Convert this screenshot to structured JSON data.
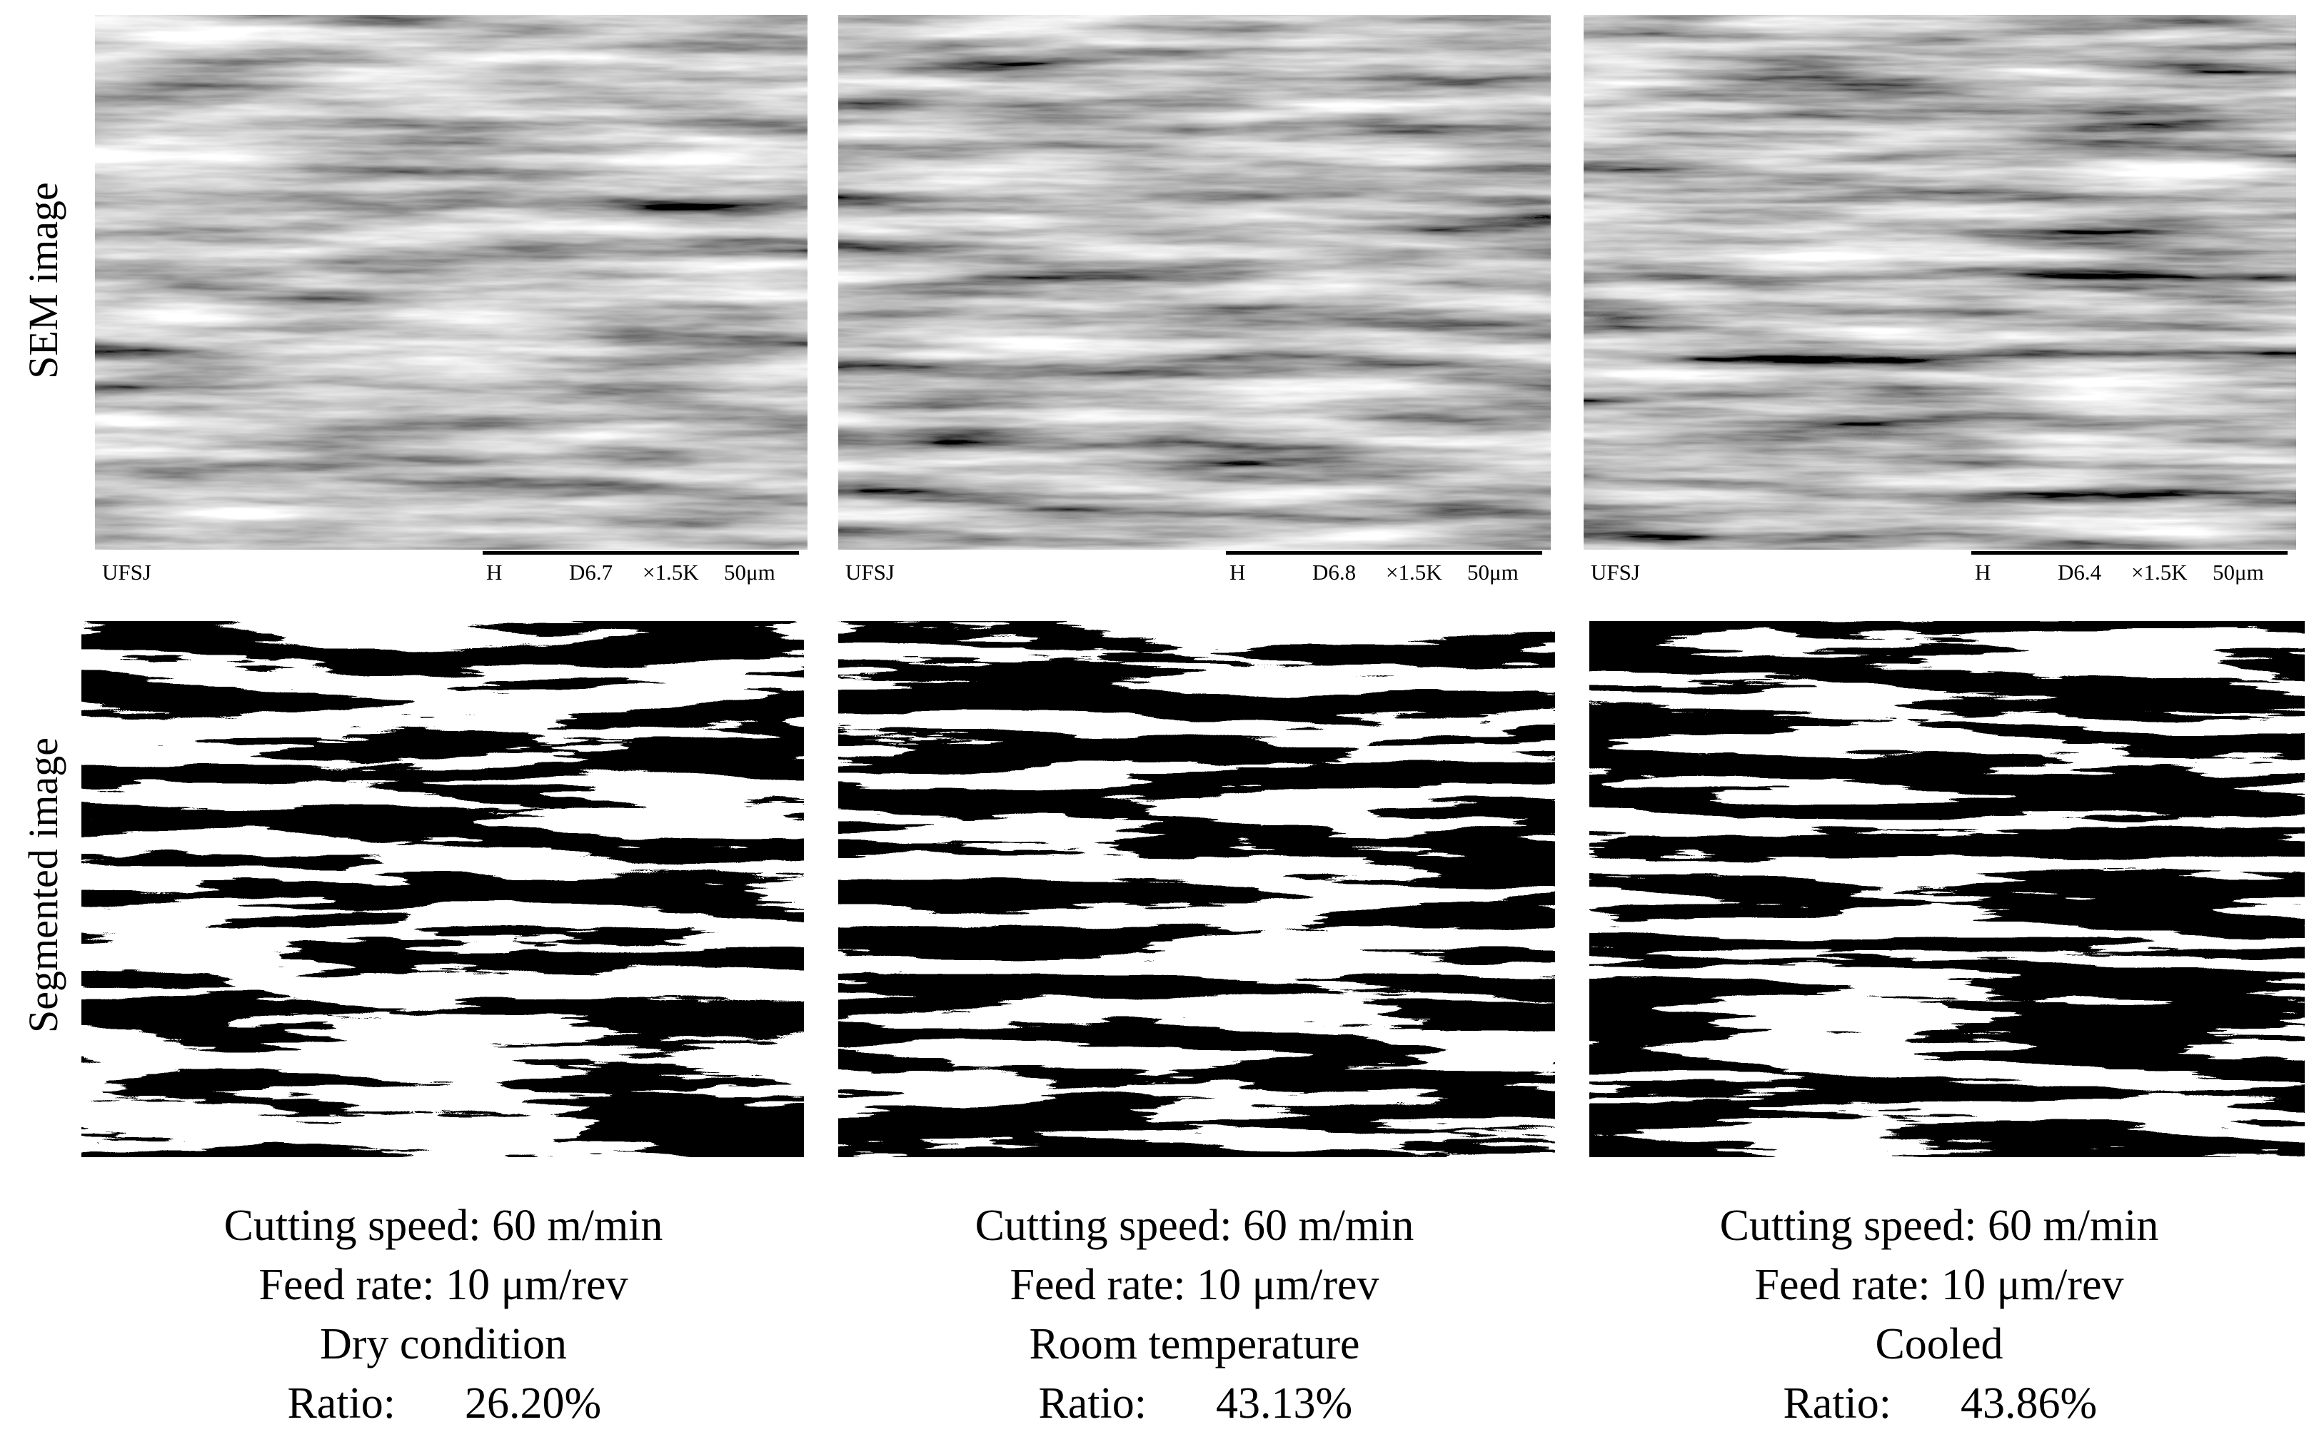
{
  "row_labels": [
    "SEM image",
    "Segmented image"
  ],
  "panels": [
    {
      "sem_footer": {
        "lab": "UFSJ",
        "mode": "H",
        "distance": "D6.7",
        "magnification": "×1.5K",
        "scale": "50μm"
      },
      "caption": {
        "cutting_speed": "Cutting speed: 60 m/min",
        "feed_rate": "Feed rate: 10 μm/rev",
        "condition": "Dry condition",
        "ratio_label": "Ratio:",
        "ratio": "26.20%"
      }
    },
    {
      "sem_footer": {
        "lab": "UFSJ",
        "mode": "H",
        "distance": "D6.8",
        "magnification": "×1.5K",
        "scale": "50μm"
      },
      "caption": {
        "cutting_speed": "Cutting speed: 60 m/min",
        "feed_rate": "Feed rate: 10 μm/rev",
        "condition": "Room temperature",
        "ratio_label": "Ratio:",
        "ratio": "43.13%"
      }
    },
    {
      "sem_footer": {
        "lab": "UFSJ",
        "mode": "H",
        "distance": "D6.4",
        "magnification": "×1.5K",
        "scale": "50μm"
      },
      "caption": {
        "cutting_speed": "Cutting speed: 60 m/min",
        "feed_rate": "Feed rate: 10 μm/rev",
        "condition": "Cooled",
        "ratio_label": "Ratio:",
        "ratio": "43.86%"
      }
    }
  ]
}
